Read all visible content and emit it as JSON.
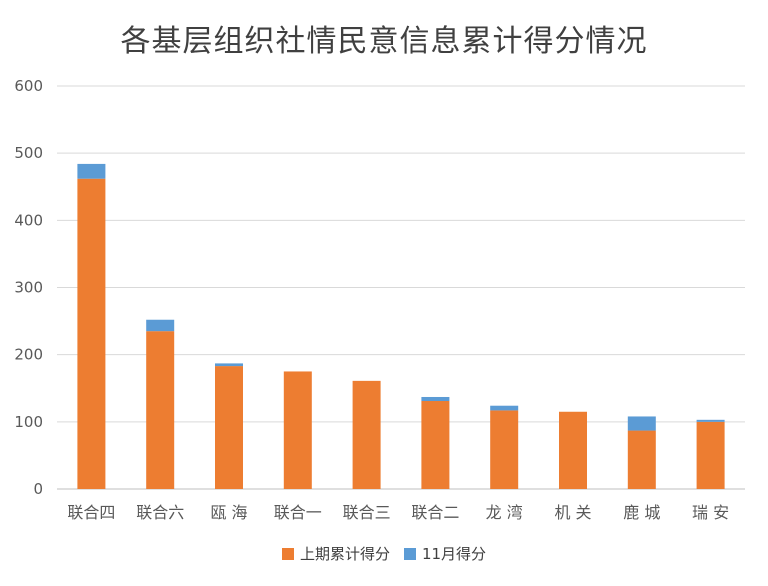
{
  "chart_data": {
    "type": "bar",
    "stacked": true,
    "title": "各基层组织社情民意信息累计得分情况",
    "xlabel": "",
    "ylabel": "",
    "ylim": [
      0,
      600
    ],
    "yticks": [
      0,
      100,
      200,
      300,
      400,
      500,
      600
    ],
    "grid": true,
    "legend_position": "bottom",
    "categories": [
      "联合四",
      "联合六",
      "瓯 海",
      "联合一",
      "联合三",
      "联合二",
      "龙 湾",
      "机 关",
      "鹿 城",
      "瑞 安"
    ],
    "series": [
      {
        "name": "上期累计得分",
        "color": "#ED7D31",
        "values": [
          462,
          235,
          183,
          175,
          161,
          131,
          117,
          115,
          87,
          100
        ]
      },
      {
        "name": "11月得分",
        "color": "#5B9BD5",
        "values": [
          22,
          17,
          4,
          0,
          0,
          6,
          7,
          0,
          21,
          3
        ]
      }
    ]
  }
}
